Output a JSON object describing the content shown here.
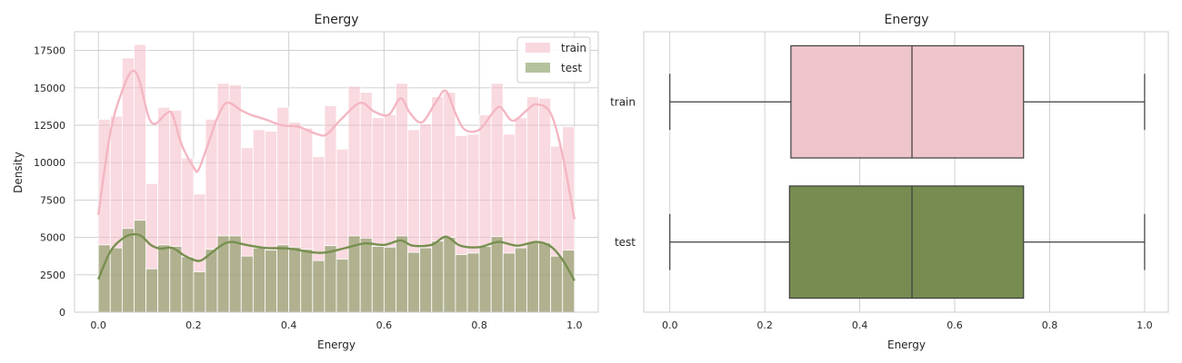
{
  "colors": {
    "train": "#f4b6c2",
    "test": "#77904f",
    "train_box": "#eec5cb",
    "test_box": "#768c51",
    "grid": "#cccccc",
    "line": "#3d3d3d"
  },
  "chart_data": [
    {
      "type": "histogram",
      "title": "Energy",
      "xlabel": "Energy",
      "ylabel": "Density",
      "xlim": [
        -0.05,
        1.05
      ],
      "ylim": [
        0,
        18750
      ],
      "x_ticks": [
        0.0,
        0.2,
        0.4,
        0.6,
        0.8,
        1.0
      ],
      "x_tick_labels": [
        "0.0",
        "0.2",
        "0.4",
        "0.6",
        "0.8",
        "1.0"
      ],
      "y_ticks": [
        0,
        2500,
        5000,
        7500,
        10000,
        12500,
        15000,
        17500
      ],
      "y_tick_labels": [
        "0",
        "2500",
        "5000",
        "7500",
        "10000",
        "12500",
        "15000",
        "17500"
      ],
      "legend": {
        "position": "top-right",
        "entries": [
          "train",
          "test"
        ]
      },
      "bin_start": 0.0,
      "bin_end": 1.0,
      "series": [
        {
          "name": "train",
          "values": [
            12900,
            13100,
            17000,
            17900,
            8600,
            13700,
            13500,
            10300,
            7900,
            12900,
            15300,
            15200,
            11000,
            12200,
            12100,
            13700,
            12700,
            12300,
            10400,
            13800,
            10900,
            15100,
            14700,
            13000,
            13200,
            15300,
            12200,
            12600,
            14400,
            14700,
            11800,
            11900,
            13200,
            15300,
            11900,
            13000,
            14400,
            14300,
            11100,
            12400
          ],
          "kde": [
            [
              0.0,
              6500
            ],
            [
              0.025,
              12000
            ],
            [
              0.05,
              14800
            ],
            [
              0.07,
              16100
            ],
            [
              0.085,
              15600
            ],
            [
              0.105,
              13100
            ],
            [
              0.12,
              12600
            ],
            [
              0.14,
              13200
            ],
            [
              0.155,
              13250
            ],
            [
              0.175,
              11200
            ],
            [
              0.2,
              9700
            ],
            [
              0.21,
              9500
            ],
            [
              0.23,
              11200
            ],
            [
              0.25,
              13000
            ],
            [
              0.27,
              14000
            ],
            [
              0.3,
              13500
            ],
            [
              0.32,
              13200
            ],
            [
              0.35,
              12900
            ],
            [
              0.385,
              12500
            ],
            [
              0.42,
              12400
            ],
            [
              0.46,
              11900
            ],
            [
              0.48,
              11900
            ],
            [
              0.51,
              12900
            ],
            [
              0.55,
              14000
            ],
            [
              0.58,
              13400
            ],
            [
              0.61,
              13200
            ],
            [
              0.635,
              14300
            ],
            [
              0.655,
              13300
            ],
            [
              0.68,
              12700
            ],
            [
              0.71,
              14100
            ],
            [
              0.73,
              14800
            ],
            [
              0.75,
              13300
            ],
            [
              0.77,
              12200
            ],
            [
              0.8,
              12200
            ],
            [
              0.83,
              13400
            ],
            [
              0.845,
              13700
            ],
            [
              0.87,
              12800
            ],
            [
              0.9,
              13500
            ],
            [
              0.92,
              13900
            ],
            [
              0.95,
              13300
            ],
            [
              0.975,
              10500
            ],
            [
              1.0,
              6200
            ]
          ]
        },
        {
          "name": "test",
          "values": [
            4500,
            4300,
            5600,
            6150,
            2900,
            4500,
            4400,
            3700,
            2700,
            4200,
            5100,
            5100,
            3750,
            4300,
            4150,
            4500,
            4350,
            4200,
            3450,
            4450,
            3550,
            5100,
            4950,
            4400,
            4350,
            5100,
            4000,
            4300,
            4750,
            5000,
            3850,
            3950,
            4400,
            5050,
            3950,
            4300,
            4650,
            4650,
            3750,
            4150
          ],
          "kde": [
            [
              0.0,
              2200
            ],
            [
              0.025,
              4050
            ],
            [
              0.05,
              4900
            ],
            [
              0.07,
              5200
            ],
            [
              0.09,
              5100
            ],
            [
              0.11,
              4500
            ],
            [
              0.13,
              4250
            ],
            [
              0.155,
              4300
            ],
            [
              0.18,
              3800
            ],
            [
              0.2,
              3500
            ],
            [
              0.215,
              3450
            ],
            [
              0.235,
              3900
            ],
            [
              0.26,
              4500
            ],
            [
              0.28,
              4700
            ],
            [
              0.31,
              4500
            ],
            [
              0.35,
              4300
            ],
            [
              0.4,
              4250
            ],
            [
              0.45,
              4000
            ],
            [
              0.48,
              4000
            ],
            [
              0.52,
              4300
            ],
            [
              0.56,
              4600
            ],
            [
              0.6,
              4500
            ],
            [
              0.635,
              4800
            ],
            [
              0.66,
              4450
            ],
            [
              0.7,
              4500
            ],
            [
              0.73,
              5050
            ],
            [
              0.76,
              4450
            ],
            [
              0.8,
              4350
            ],
            [
              0.84,
              4700
            ],
            [
              0.88,
              4450
            ],
            [
              0.92,
              4700
            ],
            [
              0.95,
              4400
            ],
            [
              0.975,
              3500
            ],
            [
              1.0,
              2100
            ]
          ]
        }
      ]
    },
    {
      "type": "box",
      "title": "Energy",
      "xlabel": "Energy",
      "xlim": [
        -0.055,
        1.05
      ],
      "x_ticks": [
        0.0,
        0.2,
        0.4,
        0.6,
        0.8,
        1.0
      ],
      "x_tick_labels": [
        "0.0",
        "0.2",
        "0.4",
        "0.6",
        "0.8",
        "1.0"
      ],
      "categories": [
        "train",
        "test"
      ],
      "boxes": [
        {
          "name": "train",
          "min": 0.0,
          "q1": 0.255,
          "median": 0.51,
          "q3": 0.745,
          "max": 1.0
        },
        {
          "name": "test",
          "min": 0.0,
          "q1": 0.252,
          "median": 0.51,
          "q3": 0.745,
          "max": 1.0
        }
      ]
    }
  ]
}
